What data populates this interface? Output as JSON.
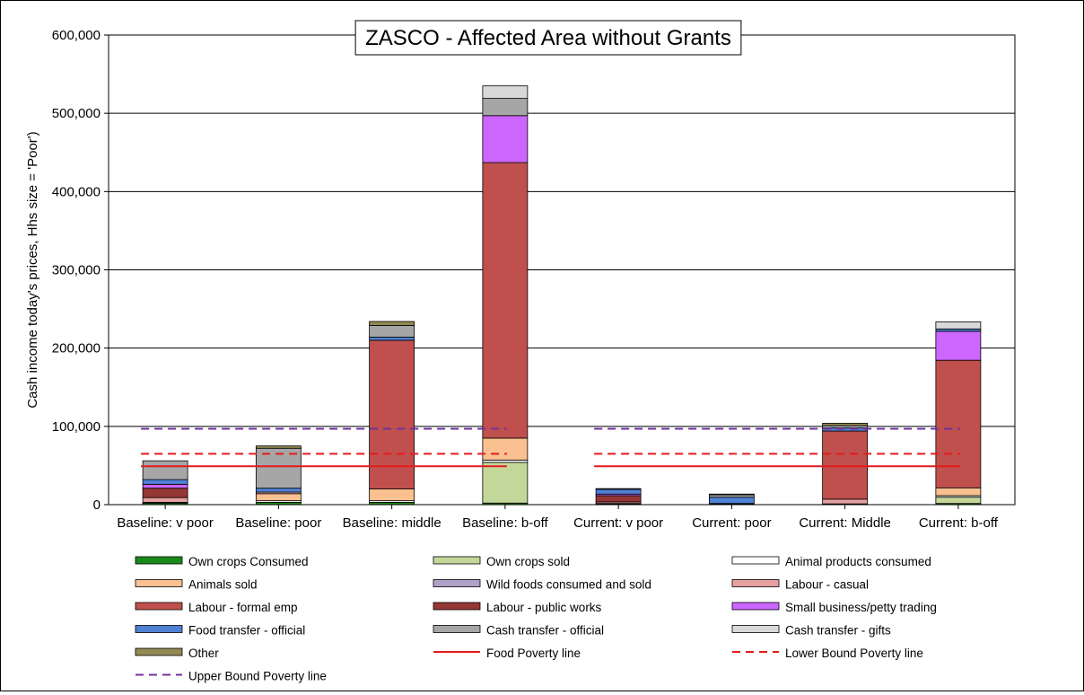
{
  "chart_data": {
    "type": "bar",
    "stacked": true,
    "title": "ZASCO - Affected Area without Grants",
    "xlabel": "",
    "ylabel": "Cash income today's prices, Hhs size = 'Poor')",
    "ylim": [
      0,
      600000
    ],
    "yticks": [
      "0",
      "100,000",
      "200,000",
      "300,000",
      "400,000",
      "500,000",
      "600,000"
    ],
    "grid": "horizontal",
    "legend": "bottom",
    "categories": [
      "Baseline: v poor",
      "Baseline: poor",
      "Baseline: middle",
      "Baseline: b-off",
      "Current: v poor",
      "Current: poor",
      "Current: Middle",
      "Current: b-off"
    ],
    "series": [
      {
        "name": "Own crops Consumed",
        "color": "#1a8a1a",
        "values": [
          2000,
          3000,
          3000,
          2000,
          500,
          500,
          500,
          1500
        ]
      },
      {
        "name": "Own crops sold",
        "color": "#c4d79b",
        "values": [
          0,
          0,
          0,
          52000,
          0,
          0,
          0,
          8000
        ]
      },
      {
        "name": "Animal products consumed",
        "color": "#ffffff",
        "values": [
          1000,
          2000,
          2000,
          3000,
          500,
          500,
          500,
          2000
        ]
      },
      {
        "name": "Animals sold",
        "color": "#fac090",
        "values": [
          0,
          9000,
          15000,
          28000,
          500,
          500,
          0,
          10000
        ]
      },
      {
        "name": "Wild foods consumed and sold",
        "color": "#b1a0c7",
        "values": [
          0,
          0,
          0,
          0,
          0,
          0,
          0,
          0
        ]
      },
      {
        "name": "Labour - casual",
        "color": "#e6a0a0",
        "values": [
          6000,
          2000,
          0,
          0,
          2000,
          0,
          6000,
          0
        ]
      },
      {
        "name": "Labour - formal emp",
        "color": "#c0504d",
        "values": [
          0,
          0,
          190000,
          352000,
          0,
          0,
          87000,
          163000
        ]
      },
      {
        "name": "Labour - public works",
        "color": "#953735",
        "values": [
          12000,
          0,
          0,
          0,
          8000,
          0,
          0,
          0
        ]
      },
      {
        "name": "Small business/petty trading",
        "color": "#cc66ff",
        "values": [
          5000,
          0,
          0,
          60000,
          2000,
          0,
          0,
          37000
        ]
      },
      {
        "name": "Food transfer - official",
        "color": "#4f81d4",
        "values": [
          6000,
          5000,
          4000,
          0,
          6000,
          8000,
          4000,
          3000
        ]
      },
      {
        "name": "Cash transfer - official",
        "color": "#a6a6a6",
        "values": [
          24000,
          51000,
          15000,
          22000,
          1000,
          3000,
          3000,
          0
        ]
      },
      {
        "name": "Cash transfer - gifts",
        "color": "#d9d9d9",
        "values": [
          0,
          0,
          0,
          16000,
          0,
          0,
          0,
          9000
        ]
      },
      {
        "name": "Other",
        "color": "#938953",
        "values": [
          0,
          3000,
          5000,
          0,
          0,
          1000,
          3000,
          0
        ]
      }
    ],
    "lines": [
      {
        "name": "Food Poverty line",
        "color": "#e41a1c",
        "style": "solid",
        "value": 49000
      },
      {
        "name": "Lower Bound Poverty line",
        "color": "#e41a1c",
        "style": "dashed",
        "value": 65000
      },
      {
        "name": "Upper Bound Poverty line",
        "color": "#7030a0",
        "style": "dashed",
        "value": 97000
      }
    ]
  }
}
